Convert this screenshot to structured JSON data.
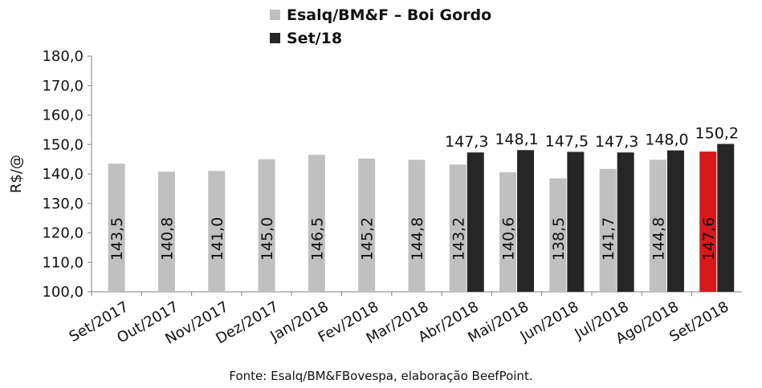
{
  "chart_data": {
    "type": "bar",
    "title": "",
    "ylabel": "R$/@",
    "xlabel": "",
    "ylim": [
      100,
      180
    ],
    "yticks": [
      "100,0",
      "110,0",
      "120,0",
      "130,0",
      "140,0",
      "150,0",
      "160,0",
      "170,0",
      "180,0"
    ],
    "grid": false,
    "legend_position": "top-center",
    "categories": [
      "Set/2017",
      "Out/2017",
      "Nov/2017",
      "Dez/2017",
      "Jan/2018",
      "Fev/2018",
      "Mar/2018",
      "Abr/2018",
      "Mai/2018",
      "Jun/2018",
      "Jul/2018",
      "Ago/2018",
      "Set/2018"
    ],
    "series": [
      {
        "name": "Esalq/BM&F – Boi Gordo",
        "color": "#c0c0c0",
        "highlight_color": "#d7191c",
        "highlight_index": 12,
        "values": [
          143.5,
          140.8,
          141.0,
          145.0,
          146.5,
          145.2,
          144.8,
          143.2,
          140.6,
          138.5,
          141.7,
          144.8,
          147.6
        ],
        "labels": [
          "143,5",
          "140,8",
          "141,0",
          "145,0",
          "146,5",
          "145,2",
          "144,8",
          "143,2",
          "140,6",
          "138,5",
          "141,7",
          "144,8",
          "147,6"
        ]
      },
      {
        "name": "Set/18",
        "color": "#262626",
        "values": [
          null,
          null,
          null,
          null,
          null,
          null,
          null,
          147.3,
          148.1,
          147.5,
          147.3,
          148.0,
          150.2
        ],
        "labels": [
          null,
          null,
          null,
          null,
          null,
          null,
          null,
          "147,3",
          "148,1",
          "147,5",
          "147,3",
          "148,0",
          "150,2"
        ]
      }
    ]
  },
  "source_note": "Fonte: Esalq/BM&FBovespa, elaboração BeefPoint."
}
